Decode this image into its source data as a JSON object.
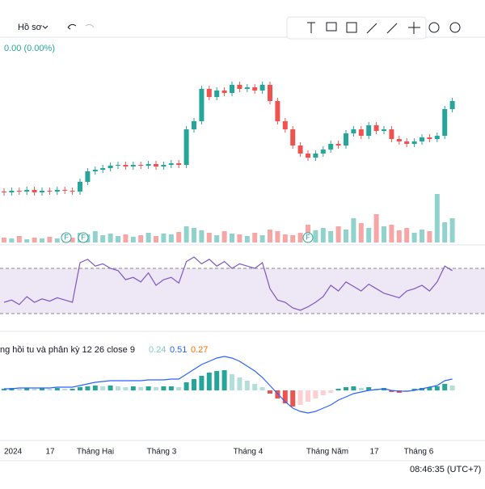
{
  "toolbar": {
    "profile": "Hồ sơ"
  },
  "price_pane": {
    "change": "0.00 (0.00%)",
    "open": [
      23,
      22,
      24,
      23,
      25,
      22,
      24,
      23,
      25,
      24,
      23,
      35,
      48,
      50,
      52,
      55,
      56,
      54,
      56,
      55,
      57,
      54,
      56,
      58,
      56,
      100,
      110,
      150,
      140,
      148,
      145,
      155,
      150,
      152,
      148,
      155,
      135,
      110,
      100,
      80,
      70,
      65,
      70,
      75,
      82,
      80,
      95,
      100,
      92,
      105,
      98,
      100,
      88,
      85,
      82,
      85,
      90,
      88,
      92,
      125
    ],
    "close": [
      22,
      24,
      23,
      25,
      22,
      24,
      23,
      25,
      24,
      23,
      35,
      48,
      50,
      52,
      55,
      56,
      54,
      56,
      55,
      57,
      54,
      56,
      58,
      56,
      100,
      110,
      150,
      140,
      148,
      145,
      155,
      150,
      152,
      148,
      155,
      135,
      110,
      100,
      80,
      70,
      65,
      70,
      75,
      82,
      80,
      95,
      100,
      92,
      105,
      98,
      100,
      88,
      85,
      82,
      85,
      90,
      88,
      92,
      125,
      135
    ],
    "volume": [
      6,
      5,
      8,
      4,
      6,
      5,
      7,
      5,
      9,
      6,
      12,
      10,
      14,
      9,
      11,
      8,
      10,
      7,
      9,
      12,
      8,
      11,
      10,
      13,
      20,
      18,
      15,
      12,
      9,
      14,
      11,
      10,
      8,
      12,
      9,
      16,
      14,
      10,
      9,
      12,
      22,
      15,
      18,
      14,
      20,
      16,
      30,
      24,
      18,
      35,
      20,
      22,
      15,
      18,
      12,
      16,
      14,
      60,
      25,
      30
    ],
    "markers": [
      "F",
      "F",
      "F"
    ]
  },
  "rsi_pane": {
    "values": [
      40,
      42,
      38,
      45,
      40,
      43,
      41,
      44,
      42,
      40,
      75,
      78,
      72,
      74,
      70,
      68,
      60,
      62,
      58,
      66,
      55,
      60,
      62,
      57,
      76,
      80,
      74,
      78,
      72,
      76,
      70,
      74,
      72,
      70,
      75,
      52,
      42,
      40,
      35,
      33,
      36,
      40,
      45,
      55,
      50,
      58,
      54,
      50,
      56,
      52,
      48,
      46,
      44,
      50,
      52,
      55,
      50,
      58,
      72,
      68
    ]
  },
  "macd_pane": {
    "label": "ng hồi tu và phân kỳ 12 26 close 9",
    "hist_value": "0.24",
    "macd_value": "0.51",
    "signal_value": "0.27",
    "histogram": [
      2,
      3,
      2,
      3,
      2,
      3,
      2,
      3,
      2,
      2,
      4,
      5,
      6,
      5,
      6,
      5,
      4,
      5,
      4,
      5,
      4,
      5,
      5,
      4,
      10,
      14,
      18,
      22,
      24,
      25,
      20,
      16,
      12,
      8,
      4,
      -4,
      -10,
      -16,
      -20,
      -18,
      -14,
      -10,
      -6,
      -3,
      2,
      4,
      5,
      3,
      4,
      2,
      3,
      -2,
      -3,
      -2,
      2,
      3,
      4,
      5,
      8,
      6
    ],
    "macd": [
      2,
      2,
      3,
      3,
      3,
      3,
      3,
      4,
      4,
      4,
      6,
      8,
      10,
      11,
      12,
      12,
      12,
      12,
      12,
      13,
      13,
      13,
      14,
      14,
      20,
      26,
      32,
      36,
      40,
      42,
      40,
      36,
      30,
      24,
      16,
      6,
      -4,
      -14,
      -22,
      -26,
      -28,
      -26,
      -22,
      -18,
      -12,
      -8,
      -4,
      -2,
      0,
      1,
      2,
      0,
      -1,
      -1,
      0,
      2,
      4,
      6,
      12,
      14
    ]
  },
  "x_axis": [
    "2024",
    "17",
    "Tháng Hai",
    "Tháng 3",
    "Tháng 4",
    "Tháng Năm",
    "17",
    "Tháng 6"
  ],
  "status": {
    "time": "08:46:35 (UTC+7)"
  }
}
